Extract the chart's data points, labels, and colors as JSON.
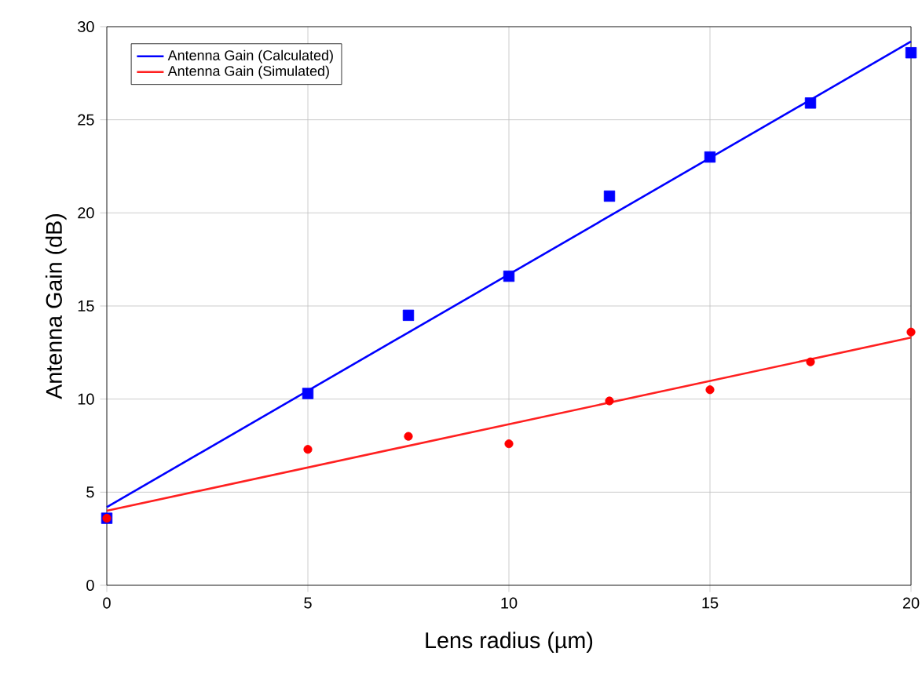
{
  "chart_data": {
    "type": "scatter",
    "xlabel": "Lens radius (µm)",
    "ylabel": "Antenna Gain (dB)",
    "xlim": [
      0,
      20
    ],
    "ylim": [
      0,
      30
    ],
    "xticks": [
      0,
      5,
      10,
      15,
      20
    ],
    "yticks": [
      0,
      5,
      10,
      15,
      20,
      25,
      30
    ],
    "grid": true,
    "legend": "top left",
    "series": [
      {
        "name": "Antenna Gain (Calculated)",
        "type": "line",
        "marker": "none",
        "color": "#0000ff",
        "x": [
          0,
          20
        ],
        "values": [
          4.2,
          29.2
        ]
      },
      {
        "name": "Antenna Gain (Simulated)",
        "type": "line",
        "marker": "none",
        "color": "#ff2020",
        "x": [
          0,
          20
        ],
        "values": [
          4.0,
          13.3
        ]
      },
      {
        "marker": "square",
        "color": "#0000ff",
        "x": [
          0,
          5,
          7.5,
          10,
          12.5,
          15,
          17.5,
          20
        ],
        "values": [
          3.6,
          10.3,
          14.5,
          16.6,
          20.9,
          23.0,
          25.9,
          28.6
        ]
      },
      {
        "marker": "circle",
        "color": "#ff0000",
        "x": [
          0,
          5,
          7.5,
          10,
          12.5,
          15,
          17.5,
          20
        ],
        "values": [
          3.6,
          7.3,
          8.0,
          7.6,
          9.9,
          10.5,
          12.0,
          13.6
        ]
      }
    ]
  }
}
